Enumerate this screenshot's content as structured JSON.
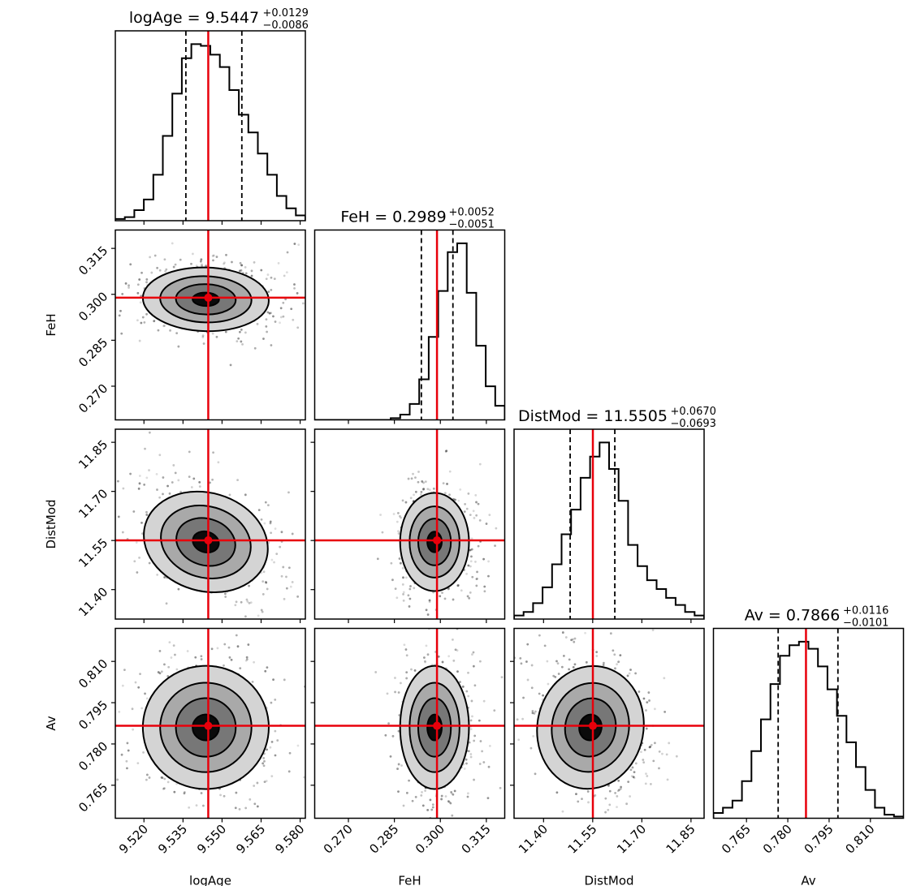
{
  "chart_data": {
    "type": "corner",
    "parameters": [
      "logAge",
      "FeH",
      "DistMod",
      "Av"
    ],
    "truths": [
      9.5447,
      0.2989,
      11.5505,
      0.7866
    ],
    "truth_color": "#e8000b",
    "titles": [
      {
        "label": "logAge = 9.5447",
        "plus": "+0.0129",
        "minus": "−0.0086"
      },
      {
        "label": "FeH = 0.2989",
        "plus": "+0.0052",
        "minus": "−0.0051"
      },
      {
        "label": "DistMod = 11.5505",
        "plus": "+0.0670",
        "minus": "−0.0693"
      },
      {
        "label": "Av = 0.7866",
        "plus": "+0.0116",
        "minus": "−0.0101"
      }
    ],
    "quantiles": [
      [
        9.5361,
        9.5447,
        9.5576
      ],
      [
        0.2938,
        0.2989,
        0.3041
      ],
      [
        11.4812,
        11.5505,
        11.6175
      ],
      [
        0.7765,
        0.7866,
        0.7982
      ]
    ],
    "ranges": [
      [
        9.509,
        9.582
      ],
      [
        0.259,
        0.321
      ],
      [
        11.31,
        11.89
      ],
      [
        0.753,
        0.822
      ]
    ],
    "ticks": [
      [
        "9.520",
        "9.535",
        "9.550",
        "9.565",
        "9.580"
      ],
      [
        "0.270",
        "0.285",
        "0.300",
        "0.315"
      ],
      [
        "11.40",
        "11.55",
        "11.70",
        "11.85"
      ],
      [
        "0.765",
        "0.780",
        "0.795",
        "0.810"
      ]
    ],
    "histograms": [
      [
        0.01,
        0.02,
        0.06,
        0.12,
        0.26,
        0.48,
        0.72,
        0.92,
        1.0,
        0.99,
        0.94,
        0.87,
        0.74,
        0.6,
        0.5,
        0.38,
        0.26,
        0.14,
        0.07,
        0.03
      ],
      [
        0.0,
        0.0,
        0.0,
        0.0,
        0.0,
        0.0,
        0.0,
        0.0,
        0.01,
        0.03,
        0.09,
        0.23,
        0.47,
        0.73,
        0.95,
        1.0,
        0.72,
        0.42,
        0.19,
        0.08
      ],
      [
        0.02,
        0.04,
        0.09,
        0.18,
        0.31,
        0.48,
        0.62,
        0.8,
        0.92,
        1.0,
        0.85,
        0.67,
        0.42,
        0.3,
        0.22,
        0.17,
        0.12,
        0.08,
        0.04,
        0.02
      ],
      [
        0.03,
        0.06,
        0.1,
        0.21,
        0.38,
        0.56,
        0.76,
        0.92,
        0.98,
        1.0,
        0.96,
        0.86,
        0.73,
        0.58,
        0.43,
        0.29,
        0.16,
        0.06,
        0.02,
        0.01
      ]
    ],
    "pair_spreads": {
      "1-0": {
        "sx": 0.0112,
        "sy": 0.0052,
        "rho": -0.05
      },
      "2-0": {
        "sx": 0.0112,
        "sy": 0.075,
        "rho": -0.35
      },
      "2-1": {
        "sx": 0.0052,
        "sy": 0.075,
        "rho": 0.0
      },
      "3-0": {
        "sx": 0.0112,
        "sy": 0.0112,
        "rho": 0.05
      },
      "3-1": {
        "sx": 0.0052,
        "sy": 0.0112,
        "rho": 0.0
      },
      "3-2": {
        "sx": 0.075,
        "sy": 0.0112,
        "rho": -0.15
      }
    },
    "contour_levels": 4,
    "show_datapoints": true,
    "grid": false,
    "legend": "none"
  }
}
